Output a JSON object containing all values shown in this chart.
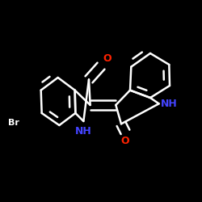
{
  "bg_color": "#000000",
  "bond_color": "#ffffff",
  "N_color": "#4444ff",
  "O_color": "#ff2200",
  "bond_width": 1.8,
  "figsize": [
    2.5,
    2.5
  ],
  "dpi": 100,
  "xlim": [
    -2.5,
    2.5
  ],
  "ylim": [
    -2.5,
    2.5
  ]
}
